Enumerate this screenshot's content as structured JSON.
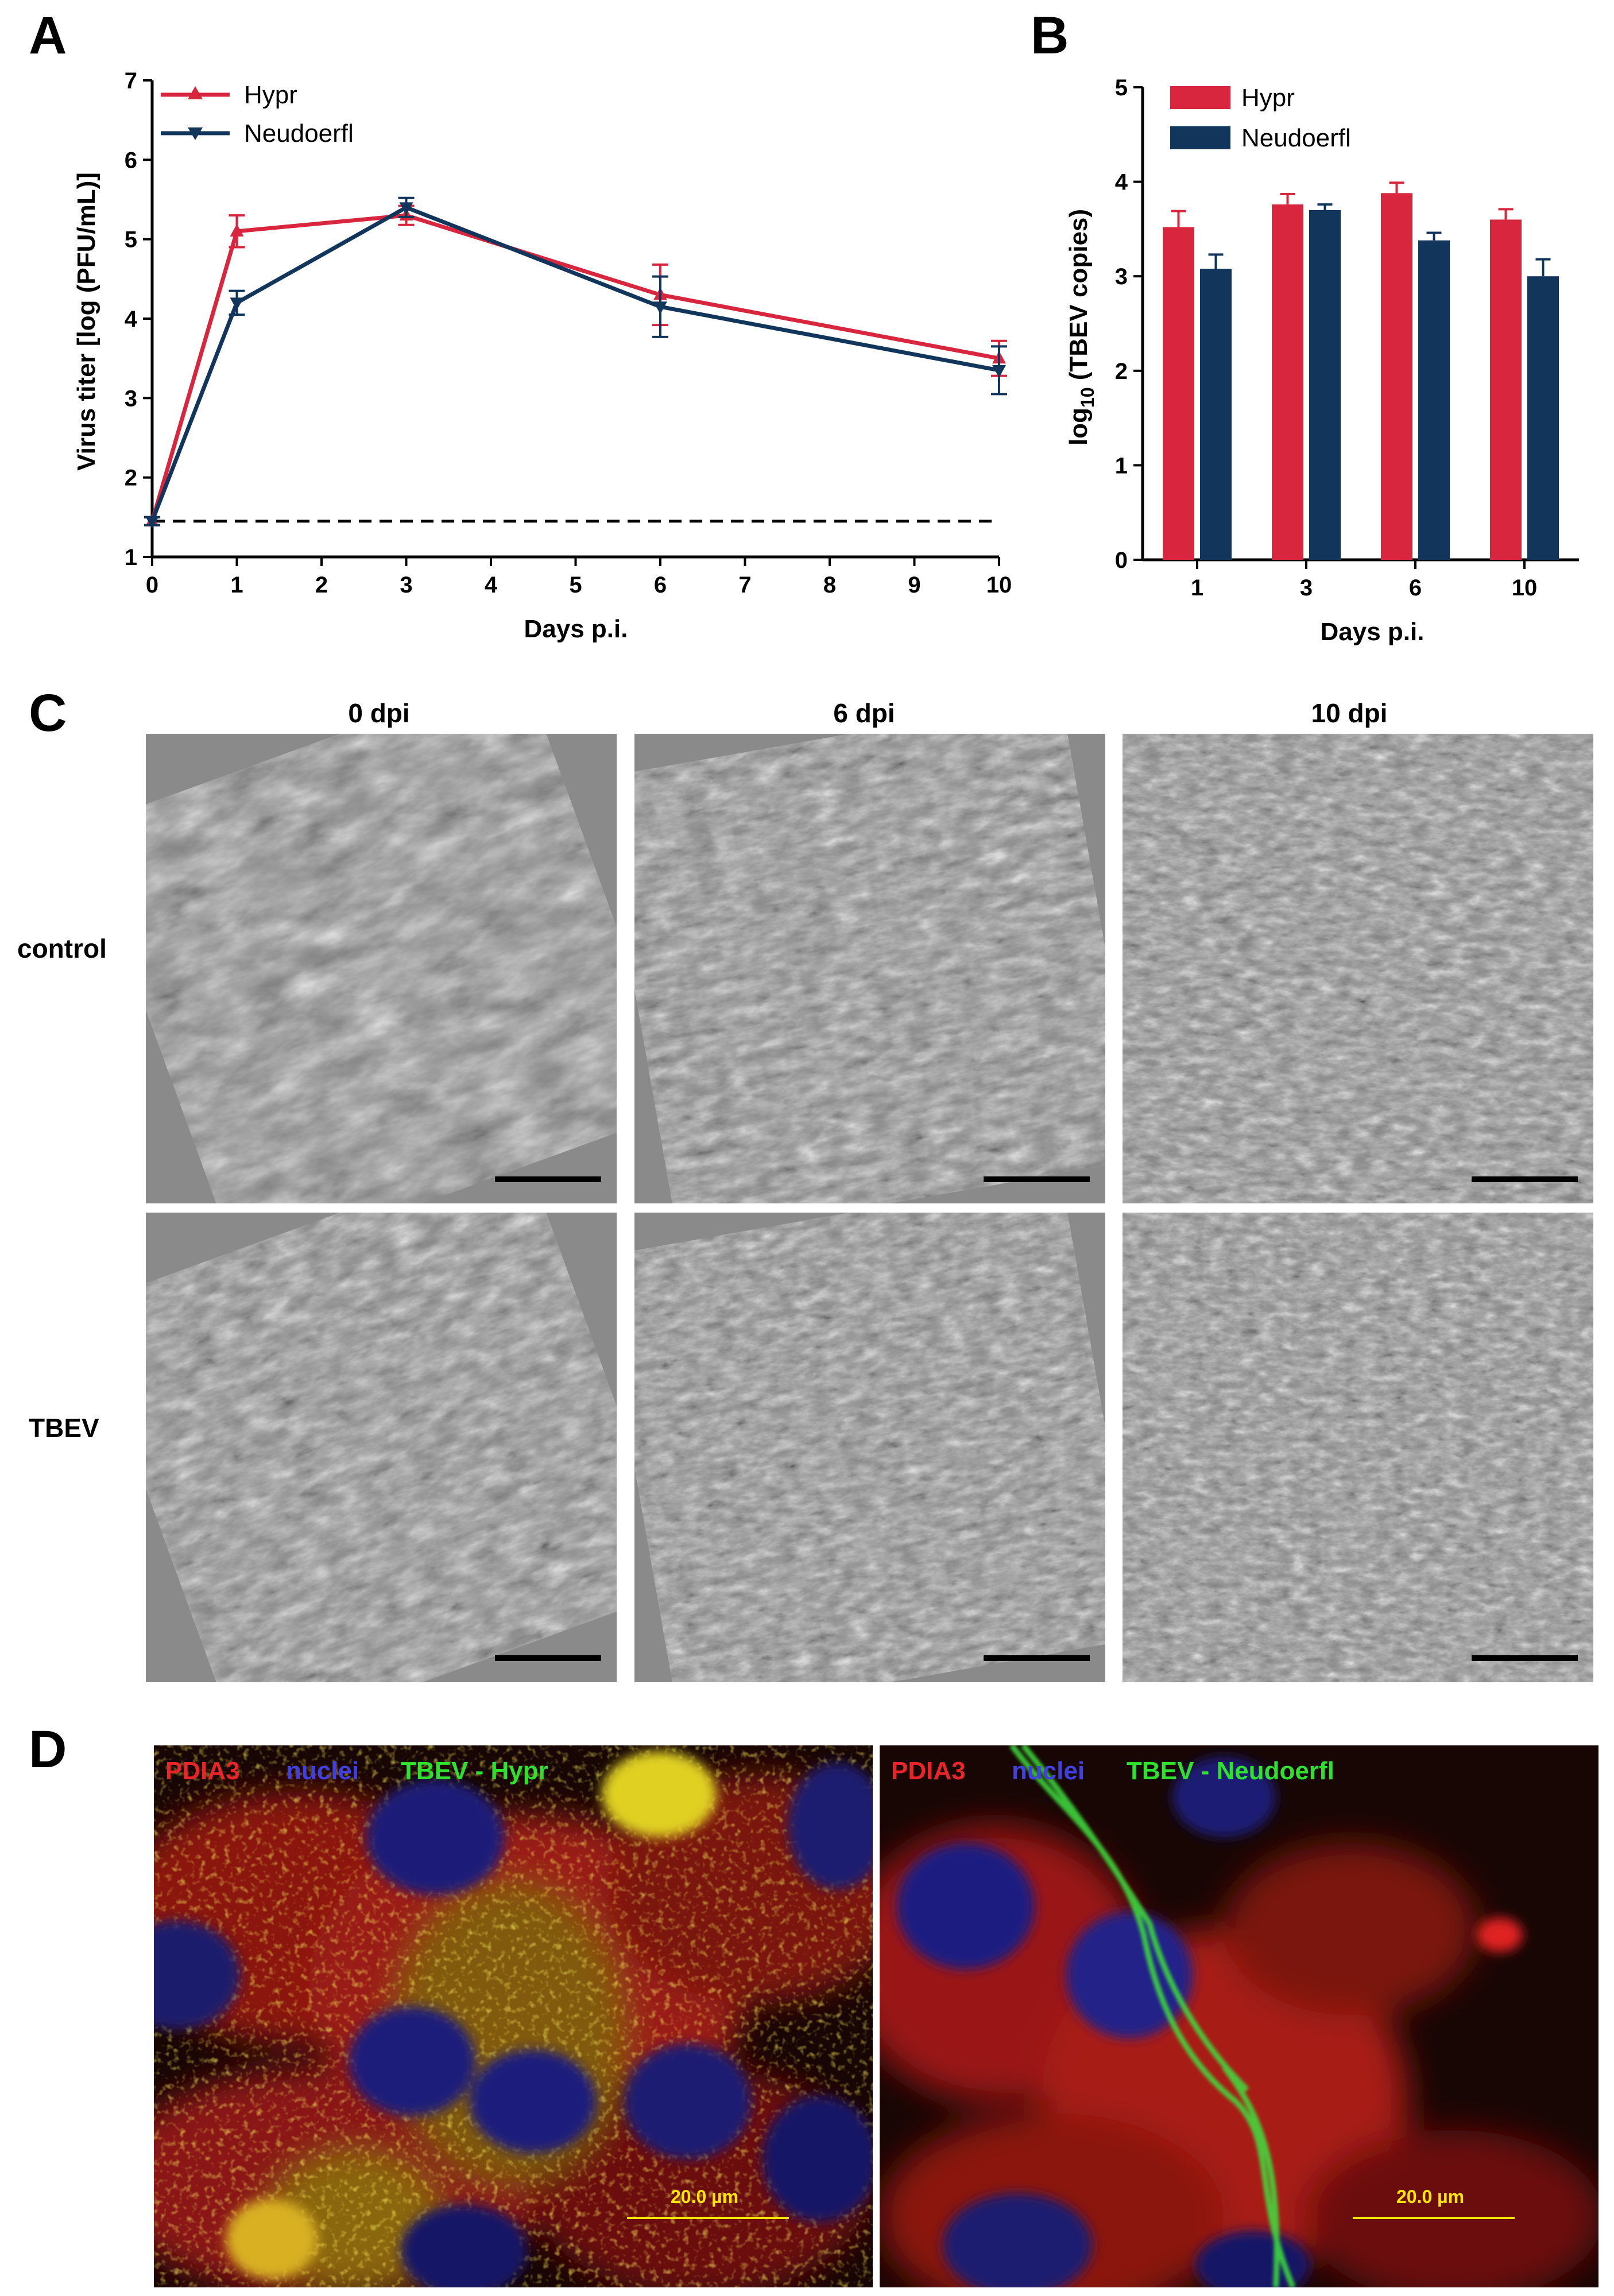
{
  "panels": {
    "a": "A",
    "b": "B",
    "c": "C",
    "d": "D"
  },
  "chart_data": [
    {
      "type": "line",
      "x": [
        0,
        1,
        3,
        6,
        10
      ],
      "series": [
        {
          "name": "Hypr",
          "values": [
            1.45,
            5.1,
            5.3,
            4.3,
            3.5
          ],
          "errors": [
            0.05,
            0.2,
            0.12,
            0.38,
            0.22
          ],
          "color": "#d7263d"
        },
        {
          "name": "Neudoerfl",
          "values": [
            1.45,
            4.2,
            5.4,
            4.15,
            3.35
          ],
          "errors": [
            0.05,
            0.15,
            0.12,
            0.38,
            0.3
          ],
          "color": "#12355b"
        }
      ],
      "detection_limit": 1.45,
      "xlabel": "Days p.i.",
      "ylabel": "Virus titer [log (PFU/mL)]",
      "xlim": [
        0,
        10
      ],
      "ylim": [
        1,
        7
      ],
      "xticks": [
        "0",
        "1",
        "2",
        "3",
        "4",
        "5",
        "6",
        "7",
        "8",
        "9",
        "10"
      ],
      "yticks": [
        "1",
        "2",
        "3",
        "4",
        "5",
        "6",
        "7"
      ],
      "legend": "top-left"
    },
    {
      "type": "bar",
      "categories": [
        "1",
        "3",
        "6",
        "10"
      ],
      "series": [
        {
          "name": "Hypr",
          "values": [
            3.52,
            3.76,
            3.88,
            3.6
          ],
          "errors": [
            0.17,
            0.11,
            0.11,
            0.11
          ],
          "color": "#d7263d"
        },
        {
          "name": "Neudoerfl",
          "values": [
            3.08,
            3.7,
            3.38,
            3.0
          ],
          "errors": [
            0.15,
            0.06,
            0.08,
            0.18
          ],
          "color": "#12355b"
        }
      ],
      "xlabel": "Days p.i.",
      "ylabel_main": "log",
      "ylabel_sub": "10",
      "ylabel_rest": " (TBEV copies)",
      "ylim": [
        0,
        5
      ],
      "yticks": [
        "0",
        "1",
        "2",
        "3",
        "4",
        "5"
      ],
      "legend": "top-left"
    }
  ],
  "microscopy": {
    "columns": [
      "0 dpi",
      "6 dpi",
      "10 dpi"
    ],
    "rows": [
      "control",
      "TBEV"
    ]
  },
  "fluorescence": {
    "left": {
      "label1": "PDIA3",
      "label2": "nuclei",
      "label3": "TBEV - Hypr",
      "scale": "20.0 µm"
    },
    "right": {
      "label1": "PDIA3",
      "label2": "nuclei",
      "label3": "TBEV - Neudoerfl",
      "scale": "20.0 µm"
    }
  },
  "colors": {
    "hypr": "#d7263d",
    "neudoerfl": "#12355b",
    "pdia3": "#e8262a",
    "nuclei": "#4040e0",
    "tbev": "#2fe02f",
    "scale_bar": "#ffe600"
  }
}
